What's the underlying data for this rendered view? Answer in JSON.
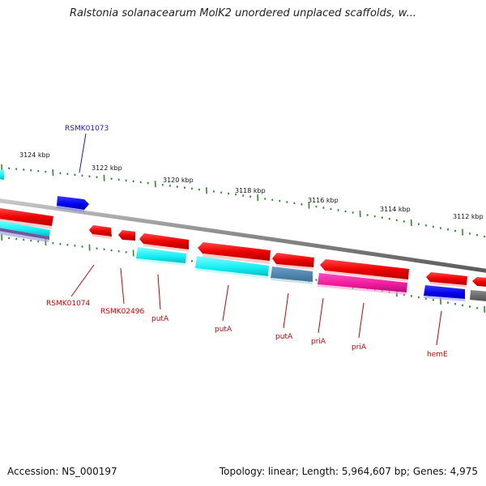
{
  "title": "Ralstonia solanacearum MolK2 unordered unplaced scaffolds, w...",
  "footer": {
    "accession": "Accession: NS_000197",
    "topology": "Topology: linear; Length: 5,964,607 bp; Genes: 4,975"
  },
  "colors": {
    "backbone": "#8a8a8a",
    "tick": "#2e8b2e",
    "label_red": "#cc0000",
    "label_blue": "#1a1acc"
  },
  "scale_labels": [
    "3124 kbp",
    "3122 kbp",
    "3120 kbp",
    "3118 kbp",
    "3116 kbp",
    "3114 kbp",
    "3112 kbp"
  ],
  "gene_labels": [
    {
      "text": "RSMK01073",
      "color": "blue"
    },
    {
      "text": "RSMK01074",
      "color": "red"
    },
    {
      "text": "RSMK02496",
      "color": "red"
    },
    {
      "text": "putA",
      "color": "red"
    },
    {
      "text": "putA",
      "color": "red"
    },
    {
      "text": "putA",
      "color": "red"
    },
    {
      "text": "priA",
      "color": "red"
    },
    {
      "text": "priA",
      "color": "red"
    },
    {
      "text": "hemE",
      "color": "red"
    }
  ]
}
